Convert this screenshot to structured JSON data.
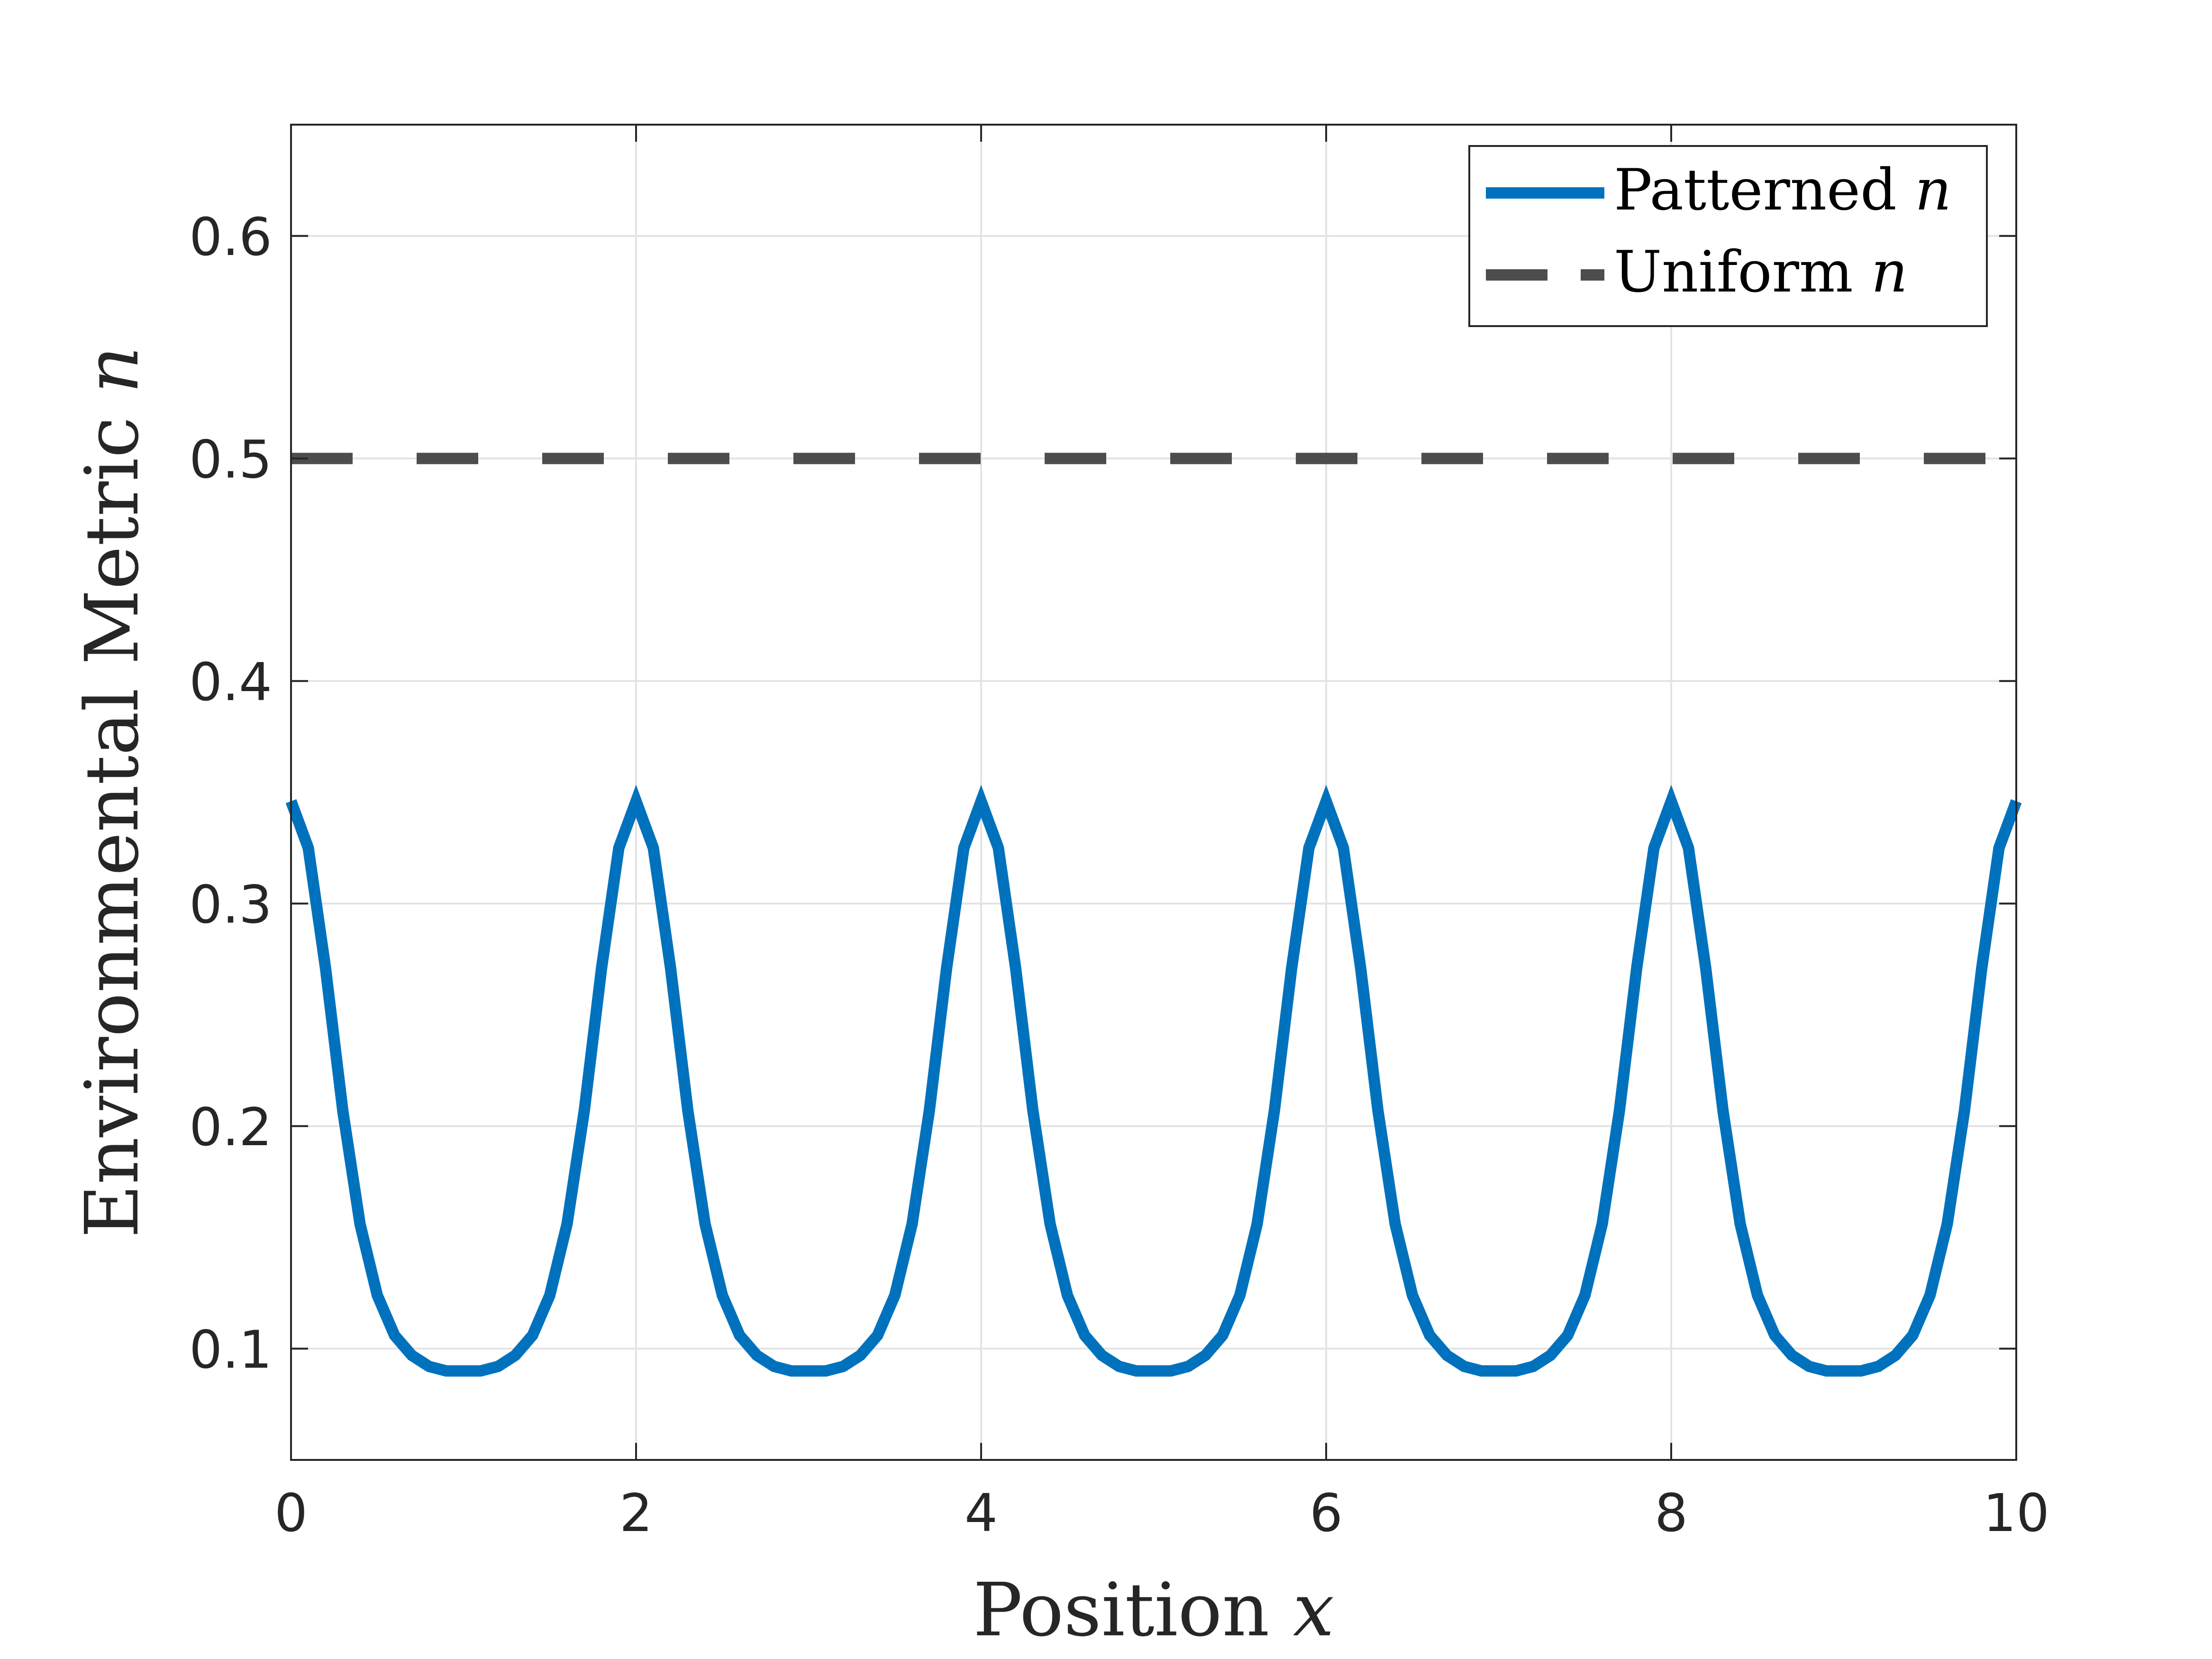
{
  "chart_data": {
    "type": "line",
    "xlabel": {
      "text": "Position ",
      "var": "x"
    },
    "ylabel": {
      "text": "Environmental Metric ",
      "var": "n"
    },
    "xlim": [
      0,
      10
    ],
    "ylim": [
      0.05,
      0.65
    ],
    "xticks": [
      0,
      2,
      4,
      6,
      8,
      10
    ],
    "xtick_labels": [
      "0",
      "2",
      "4",
      "6",
      "8",
      "10"
    ],
    "yticks": [
      0.1,
      0.2,
      0.3,
      0.4,
      0.5,
      0.6
    ],
    "ytick_labels": [
      "0.1",
      "0.2",
      "0.3",
      "0.4",
      "0.5",
      "0.6"
    ],
    "grid": true,
    "legend_position": "top-right",
    "series": [
      {
        "name": "Patterned ",
        "name_var": "n",
        "color": "#0072BD",
        "style": "solid",
        "x": [
          0,
          0.1,
          0.2,
          0.3,
          0.4,
          0.5,
          0.6,
          0.7,
          0.8,
          0.9,
          1.0,
          1.1,
          1.2,
          1.3,
          1.4,
          1.5,
          1.6,
          1.7,
          1.8,
          1.9,
          2.0,
          2.1,
          2.2,
          2.3,
          2.4,
          2.5,
          2.6,
          2.7,
          2.8,
          2.9,
          3.0,
          3.1,
          3.2,
          3.3,
          3.4,
          3.5,
          3.6,
          3.7,
          3.8,
          3.9,
          4.0,
          4.1,
          4.2,
          4.3,
          4.4,
          4.5,
          4.6,
          4.7,
          4.8,
          4.9,
          5.0,
          5.1,
          5.2,
          5.3,
          5.4,
          5.5,
          5.6,
          5.7,
          5.8,
          5.9,
          6.0,
          6.1,
          6.2,
          6.3,
          6.4,
          6.5,
          6.6,
          6.7,
          6.8,
          6.9,
          7.0,
          7.1,
          7.2,
          7.3,
          7.4,
          7.5,
          7.6,
          7.7,
          7.8,
          7.9,
          8.0,
          8.1,
          8.2,
          8.3,
          8.4,
          8.5,
          8.6,
          8.7,
          8.8,
          8.9,
          9.0,
          9.1,
          9.2,
          9.3,
          9.4,
          9.5,
          9.6,
          9.7,
          9.8,
          9.9,
          10.0
        ],
        "y": [
          0.346,
          0.325,
          0.271,
          0.207,
          0.156,
          0.124,
          0.106,
          0.097,
          0.092,
          0.09,
          0.09,
          0.09,
          0.092,
          0.097,
          0.106,
          0.124,
          0.156,
          0.207,
          0.271,
          0.325,
          0.346,
          0.325,
          0.271,
          0.207,
          0.156,
          0.124,
          0.106,
          0.097,
          0.092,
          0.09,
          0.09,
          0.09,
          0.092,
          0.097,
          0.106,
          0.124,
          0.156,
          0.207,
          0.271,
          0.325,
          0.346,
          0.325,
          0.271,
          0.207,
          0.156,
          0.124,
          0.106,
          0.097,
          0.092,
          0.09,
          0.09,
          0.09,
          0.092,
          0.097,
          0.106,
          0.124,
          0.156,
          0.207,
          0.271,
          0.325,
          0.346,
          0.325,
          0.271,
          0.207,
          0.156,
          0.124,
          0.106,
          0.097,
          0.092,
          0.09,
          0.09,
          0.09,
          0.092,
          0.097,
          0.106,
          0.124,
          0.156,
          0.207,
          0.271,
          0.325,
          0.346,
          0.325,
          0.271,
          0.207,
          0.156,
          0.124,
          0.106,
          0.097,
          0.092,
          0.09,
          0.09,
          0.09,
          0.092,
          0.097,
          0.106,
          0.124,
          0.156,
          0.207,
          0.271,
          0.325,
          0.346
        ]
      },
      {
        "name": "Uniform ",
        "name_var": "n",
        "color": "#4D4D4D",
        "style": "dashed",
        "x": [
          0,
          10
        ],
        "y": [
          0.5,
          0.5
        ]
      }
    ]
  }
}
